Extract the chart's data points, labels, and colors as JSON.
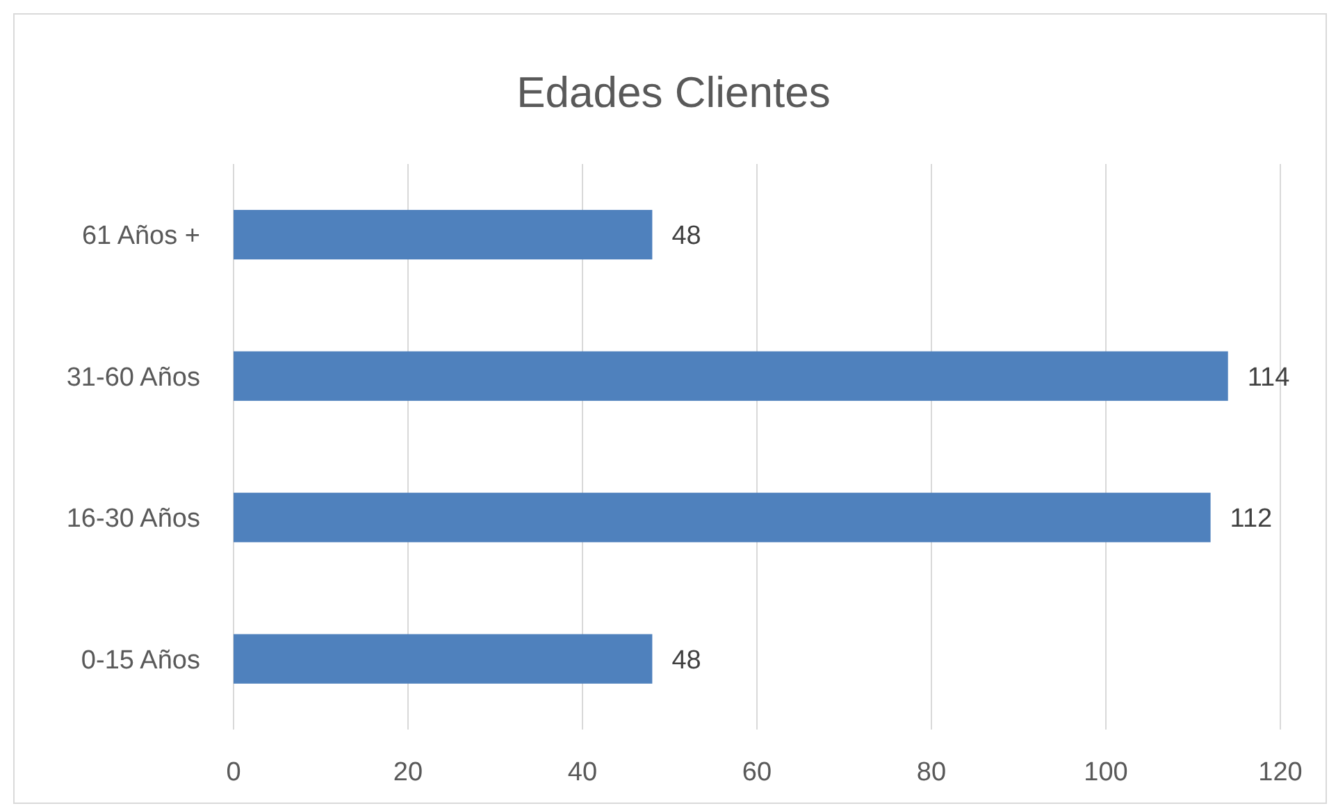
{
  "chart_data": {
    "type": "bar",
    "orientation": "horizontal",
    "title": "Edades Clientes",
    "categories": [
      "61 Años +",
      "31-60 Años",
      "16-30 Años",
      "0-15 Años"
    ],
    "values": [
      48,
      114,
      112,
      48
    ],
    "color": "#4f81bd",
    "xlim": [
      0,
      120
    ],
    "xticks": [
      0,
      20,
      40,
      60,
      80,
      100,
      120
    ],
    "grid": "x",
    "data_labels": true
  }
}
